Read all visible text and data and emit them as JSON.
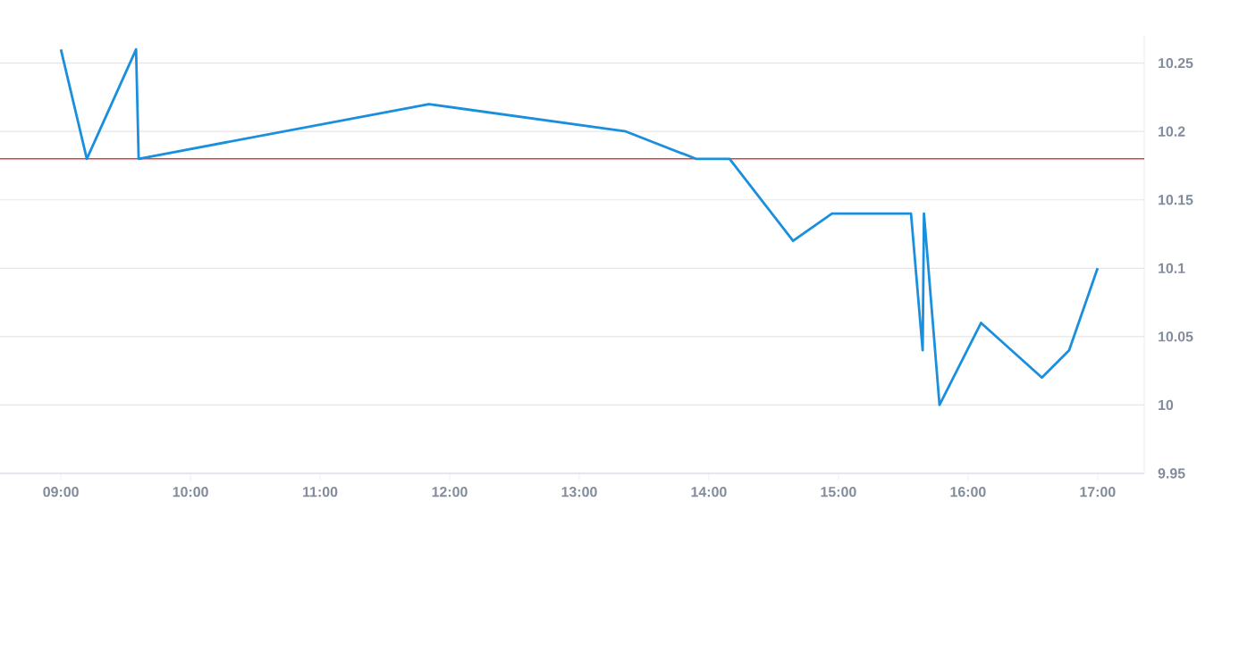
{
  "chart_data": {
    "type": "line",
    "x": [
      9.0,
      9.2,
      9.58,
      9.6,
      11.84,
      13.36,
      13.9,
      14.16,
      14.65,
      14.95,
      15.56,
      15.65,
      15.66,
      15.78,
      16.1,
      16.57,
      16.78,
      17.0
    ],
    "series": [
      {
        "color": "#1a8fdd",
        "values": [
          10.26,
          10.18,
          10.26,
          10.18,
          10.22,
          10.2,
          10.18,
          10.18,
          10.12,
          10.14,
          10.14,
          10.04,
          10.14,
          10.0,
          10.06,
          10.02,
          10.04,
          10.1
        ]
      }
    ],
    "xlim": [
      8.53,
      17.36
    ],
    "xticks": [
      {
        "value": 9,
        "label": "09:00"
      },
      {
        "value": 10,
        "label": "10:00"
      },
      {
        "value": 11,
        "label": "11:00"
      },
      {
        "value": 12,
        "label": "12:00"
      },
      {
        "value": 13,
        "label": "13:00"
      },
      {
        "value": 14,
        "label": "14:00"
      },
      {
        "value": 15,
        "label": "15:00"
      },
      {
        "value": 16,
        "label": "16:00"
      },
      {
        "value": 17,
        "label": "17:00"
      }
    ],
    "ylim": [
      9.95,
      10.27
    ],
    "yticks": [
      9.95,
      10,
      10.05,
      10.1,
      10.15,
      10.2,
      10.25
    ],
    "grid": "y",
    "ref_lines": [
      {
        "axis": "y",
        "value": 10.18,
        "color": "#e0403a"
      }
    ]
  }
}
